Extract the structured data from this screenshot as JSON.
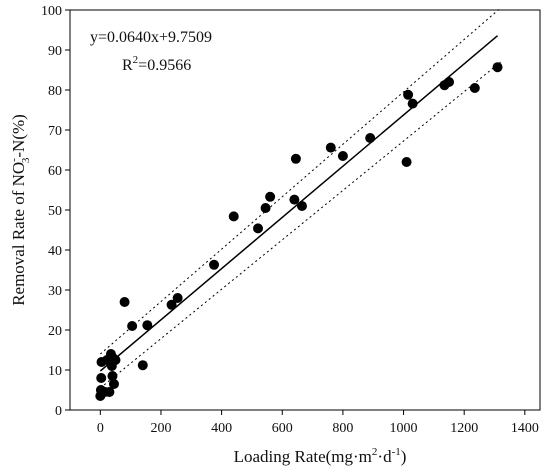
{
  "chart_data": {
    "type": "scatter",
    "xlabel": {
      "prefix": "Loading Rate(mg·m",
      "sup1": "2",
      "mid": "·d",
      "sup2": "-1",
      "suffix": ")"
    },
    "ylabel": {
      "prefix": "Removal Rate of  NO",
      "sup": "-",
      "sub": "3",
      "suffix": "-N(%)"
    },
    "xlim": [
      -100,
      1450
    ],
    "ylim": [
      0,
      100
    ],
    "xticks": [
      0,
      200,
      400,
      600,
      800,
      1000,
      1200,
      1400
    ],
    "yticks": [
      0,
      10,
      20,
      30,
      40,
      50,
      60,
      70,
      80,
      90,
      100
    ],
    "grid": false,
    "annotations": {
      "equation": "y=0.0640x+9.7509",
      "r2_prefix": "R",
      "r2_sup": "2",
      "r2_value": "=0.9566"
    },
    "fit": {
      "slope": 0.064,
      "intercept": 9.7509,
      "x_range": [
        0,
        1310
      ]
    },
    "confidence_band": {
      "upper": {
        "x": [
          0,
          1320
        ],
        "y": [
          14.0,
          100.5
        ]
      },
      "lower": {
        "x": [
          0,
          1320
        ],
        "y": [
          5.5,
          87.0
        ]
      }
    },
    "points": [
      {
        "x": 0,
        "y": 3.5
      },
      {
        "x": 2,
        "y": 5
      },
      {
        "x": 3,
        "y": 8
      },
      {
        "x": 4,
        "y": 12
      },
      {
        "x": 15,
        "y": 4.5
      },
      {
        "x": 22,
        "y": 12.5
      },
      {
        "x": 30,
        "y": 4.5
      },
      {
        "x": 35,
        "y": 14
      },
      {
        "x": 38,
        "y": 11
      },
      {
        "x": 40,
        "y": 8.5
      },
      {
        "x": 42,
        "y": 13
      },
      {
        "x": 45,
        "y": 6.5
      },
      {
        "x": 50,
        "y": 12.5
      },
      {
        "x": 80,
        "y": 27
      },
      {
        "x": 105,
        "y": 21
      },
      {
        "x": 140,
        "y": 11.2
      },
      {
        "x": 155,
        "y": 21.2
      },
      {
        "x": 235,
        "y": 26.3
      },
      {
        "x": 255,
        "y": 28
      },
      {
        "x": 375,
        "y": 36.3
      },
      {
        "x": 440,
        "y": 48.4
      },
      {
        "x": 520,
        "y": 45.4
      },
      {
        "x": 545,
        "y": 50.5
      },
      {
        "x": 560,
        "y": 53.3
      },
      {
        "x": 640,
        "y": 52.6
      },
      {
        "x": 645,
        "y": 62.8
      },
      {
        "x": 665,
        "y": 51
      },
      {
        "x": 760,
        "y": 65.6
      },
      {
        "x": 800,
        "y": 63.5
      },
      {
        "x": 890,
        "y": 68
      },
      {
        "x": 1010,
        "y": 62
      },
      {
        "x": 1015,
        "y": 78.8
      },
      {
        "x": 1030,
        "y": 76.6
      },
      {
        "x": 1135,
        "y": 81.2
      },
      {
        "x": 1150,
        "y": 82
      },
      {
        "x": 1235,
        "y": 80.5
      },
      {
        "x": 1310,
        "y": 85.7
      }
    ]
  }
}
